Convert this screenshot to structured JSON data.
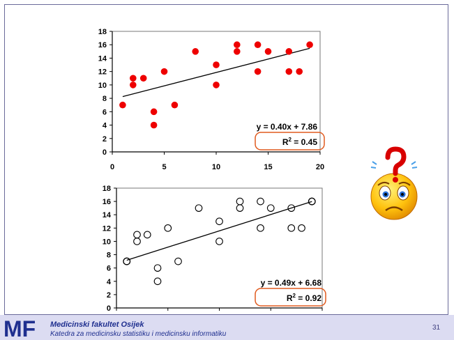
{
  "slide_number": "31",
  "footer": {
    "faculty": "Medicinski fakultet Osijek",
    "department": "Katedra za medicinsku statistiku i medicinsku informatiku",
    "logo_text": "MF"
  },
  "colors": {
    "top_points": "#ee0000",
    "bottom_points": "#000000",
    "highlight_box": "#e05a1e",
    "footer_bg": "#dcdcf2"
  },
  "chart_data": [
    {
      "type": "scatter",
      "title": "",
      "xlabel": "",
      "ylabel": "",
      "xlim": [
        0,
        20
      ],
      "ylim": [
        0,
        18
      ],
      "xticks": [
        0,
        5,
        10,
        15,
        20
      ],
      "yticks": [
        0,
        2,
        4,
        6,
        8,
        10,
        12,
        14,
        16,
        18
      ],
      "point_style": "filled-red",
      "x": [
        1,
        2,
        2,
        3,
        4,
        4,
        5,
        6,
        8,
        10,
        10,
        12,
        12,
        14,
        14,
        15,
        17,
        17,
        18,
        19
      ],
      "y": [
        7,
        10,
        11,
        11,
        4,
        6,
        12,
        7,
        15,
        10,
        13,
        15,
        16,
        12,
        16,
        15,
        12,
        15,
        12,
        16
      ],
      "trendline": {
        "slope": 0.4,
        "intercept": 7.86
      },
      "equation": "y = 0.40x + 7.86",
      "r2_prefix": "R",
      "r2_sup": "2",
      "r2_value": " = 0.45"
    },
    {
      "type": "scatter",
      "title": "",
      "xlabel": "",
      "ylabel": "",
      "xlim": [
        0,
        20
      ],
      "ylim": [
        0,
        18
      ],
      "xticks": [
        0,
        5,
        10,
        15,
        20
      ],
      "yticks": [
        0,
        2,
        4,
        6,
        8,
        10,
        12,
        14,
        16,
        18
      ],
      "point_style": "hollow-black",
      "x": [
        1,
        1,
        1,
        2,
        2,
        3,
        4,
        4,
        5,
        6,
        8,
        10,
        10,
        12,
        12,
        14,
        14,
        15,
        17,
        17,
        18,
        19,
        19,
        19
      ],
      "y": [
        7,
        7,
        7,
        10,
        11,
        11,
        4,
        6,
        12,
        7,
        15,
        10,
        13,
        15,
        16,
        12,
        16,
        15,
        12,
        15,
        12,
        16,
        16,
        16
      ],
      "trendline": {
        "slope": 0.49,
        "intercept": 6.68
      },
      "equation": "y = 0.49x + 6.68",
      "r2_prefix": "R",
      "r2_sup": "2",
      "r2_value": " = 0.92"
    }
  ]
}
